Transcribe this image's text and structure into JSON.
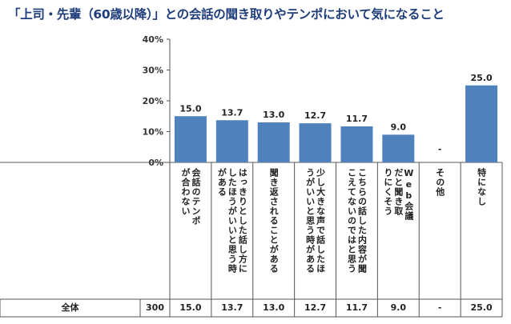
{
  "title": "「上司・先輩（60歳以降）」との会話の聞き取りやテンポにおいて気になること",
  "chart_data": {
    "type": "bar",
    "categories": [
      "会話のテンポが合わない",
      "はっきりとした話し方にしたほうがいいと思う時がある",
      "聞き返されることがある",
      "少し大きな声で話したほうがいいと思う時がある",
      "こちらの話した内容が聞こえてないのではと思う",
      "Web会議だと聞き取りにくそう",
      "その他",
      "特になし"
    ],
    "values": [
      15.0,
      13.7,
      13.0,
      12.7,
      11.7,
      9.0,
      null,
      25.0
    ],
    "data_labels": [
      "15.0",
      "13.7",
      "13.0",
      "12.7",
      "11.7",
      "9.0",
      "-",
      "25.0"
    ],
    "yticks": [
      "0%",
      "10%",
      "20%",
      "30%",
      "40%"
    ],
    "ylim": [
      0,
      40
    ],
    "bar_color": "#4f81bd"
  },
  "table": {
    "row_label": "全体",
    "n": "300",
    "values": [
      "15.0",
      "13.7",
      "13.0",
      "12.7",
      "11.7",
      "9.0",
      "-",
      "25.0"
    ]
  }
}
